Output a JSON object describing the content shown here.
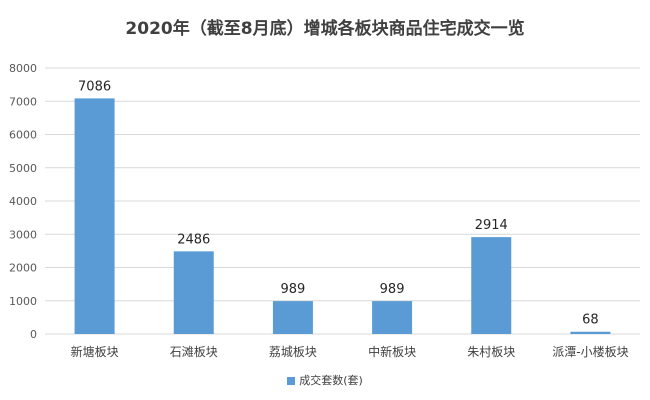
{
  "chart_data": {
    "type": "bar",
    "title": "2020年（截至8月底）增城各板块商品住宅成交一览",
    "categories": [
      "新塘板块",
      "石滩板块",
      "荔城板块",
      "中新板块",
      "朱村板块",
      "派潭-小楼板块"
    ],
    "series": [
      {
        "name": "成交套数(套)",
        "values": [
          7086,
          2486,
          989,
          989,
          2914,
          68
        ]
      }
    ],
    "ylim": [
      0,
      8000
    ],
    "yticks": [
      0,
      1000,
      2000,
      3000,
      4000,
      5000,
      6000,
      7000,
      8000
    ],
    "grid": true,
    "legend": "bottom",
    "bar_color": "#5b9bd5"
  }
}
